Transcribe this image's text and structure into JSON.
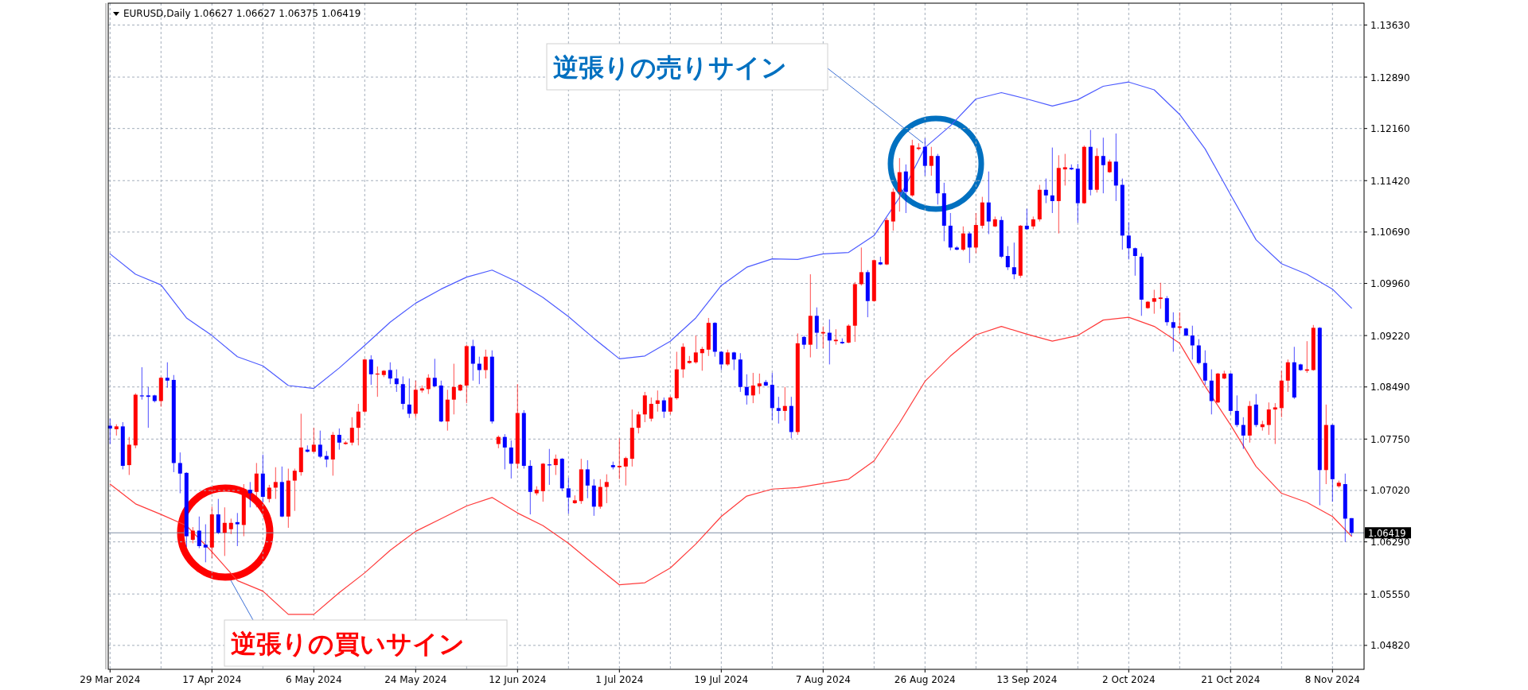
{
  "chart_data": {
    "type": "candlestick",
    "title": "EURUSD,Daily 1.06627 1.06627 1.06375 1.06419",
    "categories": [
      "29 Mar 2024",
      null,
      null,
      null,
      null,
      null,
      null,
      null,
      null,
      null,
      null,
      null,
      null,
      null,
      null,
      null,
      "17 Apr 2024",
      null,
      null,
      null,
      null,
      null,
      null,
      null,
      null,
      null,
      null,
      null,
      null,
      null,
      null,
      null,
      "6 May 2024",
      null,
      null,
      null,
      null,
      null,
      null,
      null,
      null,
      null,
      null,
      null,
      null,
      null,
      null,
      null,
      "24 May 2024",
      null,
      null,
      null,
      null,
      null,
      null,
      null,
      null,
      null,
      null,
      null,
      null,
      null,
      null,
      null,
      "12 Jun 2024",
      null,
      null,
      null,
      null,
      null,
      null,
      null,
      null,
      null,
      null,
      null,
      null,
      null,
      null,
      null,
      "1 Jul 2024",
      null,
      null,
      null,
      null,
      null,
      null,
      null,
      null,
      null,
      null,
      null,
      null,
      null,
      null,
      null,
      "19 Jul 2024",
      null,
      null,
      null,
      null,
      null,
      null,
      null,
      null,
      null,
      null,
      null,
      null,
      null,
      null,
      null,
      "7 Aug 2024",
      null,
      null,
      null,
      null,
      null,
      null,
      null,
      null,
      null,
      null,
      null,
      null,
      null,
      null,
      null,
      "26 Aug 2024",
      null,
      null,
      null,
      null,
      null,
      null,
      null,
      null,
      null,
      null,
      null,
      null,
      null,
      null,
      null,
      "13 Sep 2024",
      null,
      null,
      null,
      null,
      null,
      null,
      null,
      null,
      null,
      null,
      null,
      null,
      null,
      null,
      null,
      "2 Oct 2024",
      null,
      null,
      null,
      null,
      null,
      null,
      null,
      null,
      null,
      null,
      null,
      null,
      null,
      null,
      null,
      "21 Oct 2024",
      null,
      null,
      null,
      null,
      null,
      null,
      null,
      null,
      null,
      null,
      null,
      null,
      null,
      null,
      null,
      "8 Nov 2024",
      null,
      null,
      null
    ],
    "ohlc": [
      [
        1.0794,
        1.0804,
        1.0768,
        1.079
      ],
      [
        1.0789,
        1.0796,
        1.078,
        1.0793
      ],
      [
        1.0793,
        1.0799,
        1.0732,
        1.0737
      ],
      [
        1.0738,
        1.0778,
        1.0724,
        1.0767
      ],
      [
        1.0766,
        1.084,
        1.0762,
        1.0838
      ],
      [
        1.0837,
        1.0877,
        1.0831,
        1.0836
      ],
      [
        1.0837,
        1.0849,
        1.0791,
        1.0835
      ],
      [
        1.0837,
        1.0838,
        1.0827,
        1.0829
      ],
      [
        1.0829,
        1.0863,
        1.0821,
        1.0862
      ],
      [
        1.0862,
        1.0884,
        1.0848,
        1.0858
      ],
      [
        1.0859,
        1.0866,
        1.0728,
        1.0741
      ],
      [
        1.0741,
        1.0756,
        1.0698,
        1.0726
      ],
      [
        1.0727,
        1.0728,
        1.0622,
        1.0637
      ],
      [
        1.0632,
        1.065,
        1.0627,
        1.0645
      ],
      [
        1.0645,
        1.0665,
        1.062,
        1.0623
      ],
      [
        1.0625,
        1.0654,
        1.06,
        1.0621
      ],
      [
        1.0621,
        1.0679,
        1.0606,
        1.0668
      ],
      [
        1.0668,
        1.069,
        1.064,
        1.0642
      ],
      [
        1.0642,
        1.0678,
        1.0609,
        1.0656
      ],
      [
        1.0647,
        1.0662,
        1.064,
        1.0656
      ],
      [
        1.0657,
        1.067,
        1.0623,
        1.0654
      ],
      [
        1.0653,
        1.0711,
        1.0637,
        1.0703
      ],
      [
        1.0703,
        1.0714,
        1.0678,
        1.0698
      ],
      [
        1.07,
        1.0741,
        1.0678,
        1.0726
      ],
      [
        1.0726,
        1.0753,
        1.0685,
        1.0693
      ],
      [
        1.069,
        1.071,
        1.0685,
        1.0706
      ],
      [
        1.0706,
        1.0735,
        1.069,
        1.0714
      ],
      [
        1.0714,
        1.0736,
        1.0664,
        1.0665
      ],
      [
        1.0665,
        1.0733,
        1.0649,
        1.0716
      ],
      [
        1.0716,
        1.0733,
        1.0673,
        1.073
      ],
      [
        1.0728,
        1.0811,
        1.0723,
        1.0763
      ],
      [
        1.076,
        1.0766,
        1.0756,
        1.0757
      ],
      [
        1.0757,
        1.0791,
        1.0756,
        1.0767
      ],
      [
        1.0767,
        1.0787,
        1.0748,
        1.075
      ],
      [
        1.0751,
        1.0758,
        1.0735,
        1.0746
      ],
      [
        1.0746,
        1.0785,
        1.0723,
        1.0781
      ],
      [
        1.0781,
        1.079,
        1.076,
        1.077
      ],
      [
        1.0768,
        1.0772,
        1.0767,
        1.077
      ],
      [
        1.077,
        1.0806,
        1.0766,
        1.0791
      ],
      [
        1.0791,
        1.0825,
        1.0766,
        1.0814
      ],
      [
        1.0814,
        1.0889,
        1.0812,
        1.0888
      ],
      [
        1.0888,
        1.0894,
        1.0852,
        1.0867
      ],
      [
        1.0867,
        1.0878,
        1.0835,
        1.0868
      ],
      [
        1.0866,
        1.0873,
        1.0863,
        1.0872
      ],
      [
        1.0873,
        1.0884,
        1.0853,
        1.0861
      ],
      [
        1.0861,
        1.0874,
        1.0842,
        1.0853
      ],
      [
        1.0853,
        1.0864,
        1.0817,
        1.0825
      ],
      [
        1.0824,
        1.0861,
        1.0805,
        1.0811
      ],
      [
        1.0811,
        1.0858,
        1.0805,
        1.0845
      ],
      [
        1.0844,
        1.0851,
        1.0841,
        1.0847
      ],
      [
        1.0846,
        1.0867,
        1.0839,
        1.0862
      ],
      [
        1.0862,
        1.0889,
        1.0849,
        1.085
      ],
      [
        1.0851,
        1.0858,
        1.0799,
        1.08
      ],
      [
        1.08,
        1.0845,
        1.0787,
        1.0831
      ],
      [
        1.0831,
        1.0882,
        1.081,
        1.0849
      ],
      [
        1.0844,
        1.0853,
        1.0843,
        1.0852
      ],
      [
        1.0851,
        1.0909,
        1.0826,
        1.0907
      ],
      [
        1.0907,
        1.0916,
        1.0858,
        1.0882
      ],
      [
        1.0882,
        1.0892,
        1.0853,
        1.0873
      ],
      [
        1.0873,
        1.0902,
        1.0861,
        1.0892
      ],
      [
        1.0892,
        1.0901,
        1.0797,
        1.08
      ],
      [
        1.0768,
        1.078,
        1.0762,
        1.0778
      ],
      [
        1.0778,
        1.0782,
        1.0732,
        1.0763
      ],
      [
        1.0763,
        1.0773,
        1.0719,
        1.074
      ],
      [
        1.074,
        1.0853,
        1.0733,
        1.0812
      ],
      [
        1.0812,
        1.0816,
        1.0733,
        1.0737
      ],
      [
        1.0737,
        1.0745,
        1.0668,
        1.07
      ],
      [
        1.0698,
        1.0708,
        1.0695,
        1.0703
      ],
      [
        1.0701,
        1.0741,
        1.0686,
        1.074
      ],
      [
        1.0739,
        1.0761,
        1.071,
        1.0738
      ],
      [
        1.0738,
        1.0753,
        1.0724,
        1.0747
      ],
      [
        1.0747,
        1.0748,
        1.0701,
        1.0705
      ],
      [
        1.0705,
        1.072,
        1.0669,
        1.0692
      ],
      [
        1.0684,
        1.0695,
        1.0683,
        1.0688
      ],
      [
        1.0687,
        1.0747,
        1.0683,
        1.0732
      ],
      [
        1.0732,
        1.0745,
        1.0691,
        1.0709
      ],
      [
        1.0709,
        1.0718,
        1.0666,
        1.0679
      ],
      [
        1.0679,
        1.0718,
        1.0676,
        1.0707
      ],
      [
        1.0707,
        1.0725,
        1.0684,
        1.0714
      ],
      [
        1.0738,
        1.0743,
        1.0732,
        1.0735
      ],
      [
        1.0735,
        1.0776,
        1.0718,
        1.0737
      ],
      [
        1.0736,
        1.075,
        1.0709,
        1.0748
      ],
      [
        1.0747,
        1.0817,
        1.0736,
        1.0791
      ],
      [
        1.0791,
        1.0814,
        1.0783,
        1.081
      ],
      [
        1.081,
        1.0842,
        1.0799,
        1.0837
      ],
      [
        1.0804,
        1.0834,
        1.08,
        1.0825
      ],
      [
        1.0825,
        1.0844,
        1.0814,
        1.083
      ],
      [
        1.083,
        1.0834,
        1.0805,
        1.0814
      ],
      [
        1.0814,
        1.0836,
        1.081,
        1.0834
      ],
      [
        1.0833,
        1.0899,
        1.0831,
        1.0874
      ],
      [
        1.0874,
        1.0911,
        1.0862,
        1.0906
      ],
      [
        1.0883,
        1.0893,
        1.0882,
        1.0886
      ],
      [
        1.0884,
        1.0922,
        1.0882,
        1.0898
      ],
      [
        1.0897,
        1.0906,
        1.0872,
        1.0903
      ],
      [
        1.0902,
        1.0947,
        1.0893,
        1.094
      ],
      [
        1.094,
        1.0941,
        1.0892,
        1.0899
      ],
      [
        1.0899,
        1.09,
        1.0873,
        1.0881
      ],
      [
        1.0881,
        1.0902,
        1.0879,
        1.0898
      ],
      [
        1.0898,
        1.0899,
        1.0873,
        1.0888
      ],
      [
        1.0888,
        1.0897,
        1.0842,
        1.0849
      ],
      [
        1.0849,
        1.0867,
        1.0824,
        1.0837
      ],
      [
        1.0837,
        1.0869,
        1.0826,
        1.0851
      ],
      [
        1.085,
        1.0868,
        1.0839,
        1.0854
      ],
      [
        1.0856,
        1.0859,
        1.085,
        1.0851
      ],
      [
        1.0852,
        1.0869,
        1.0802,
        1.0819
      ],
      [
        1.0819,
        1.0835,
        1.0797,
        1.0815
      ],
      [
        1.0815,
        1.0849,
        1.0801,
        1.0822
      ],
      [
        1.0822,
        1.0835,
        1.0776,
        1.0785
      ],
      [
        1.0785,
        1.0925,
        1.0781,
        1.0911
      ],
      [
        1.092,
        1.0922,
        1.0903,
        1.0909
      ],
      [
        1.0909,
        1.1009,
        1.0891,
        1.095
      ],
      [
        1.095,
        1.0962,
        1.0903,
        1.0926
      ],
      [
        1.0925,
        1.0935,
        1.0904,
        1.0927
      ],
      [
        1.0926,
        1.0945,
        1.0881,
        1.0915
      ],
      [
        1.0914,
        1.0931,
        1.0909,
        1.0916
      ],
      [
        1.0913,
        1.0918,
        1.091,
        1.0911
      ],
      [
        1.0912,
        1.0938,
        1.0911,
        1.0936
      ],
      [
        1.0936,
        1.0998,
        1.0913,
        1.0995
      ],
      [
        1.0995,
        1.1047,
        1.0993,
        1.1012
      ],
      [
        1.1012,
        1.1015,
        1.0948,
        1.0971
      ],
      [
        1.0971,
        1.103,
        1.097,
        1.1029
      ],
      [
        1.1026,
        1.1034,
        1.1022,
        1.1023
      ],
      [
        1.1023,
        1.1089,
        1.1022,
        1.1086
      ],
      [
        1.1084,
        1.1131,
        1.1071,
        1.1126
      ],
      [
        1.1126,
        1.1174,
        1.1098,
        1.1154
      ],
      [
        1.1155,
        1.1165,
        1.1096,
        1.1126
      ],
      [
        1.1121,
        1.12,
        1.1119,
        1.1192
      ],
      [
        1.1187,
        1.1195,
        1.1185,
        1.1189
      ],
      [
        1.119,
        1.1202,
        1.1149,
        1.1163
      ],
      [
        1.1163,
        1.119,
        1.1149,
        1.1177
      ],
      [
        1.1177,
        1.118,
        1.1108,
        1.1124
      ],
      [
        1.1124,
        1.1139,
        1.1056,
        1.1078
      ],
      [
        1.1078,
        1.1096,
        1.1043,
        1.1047
      ],
      [
        1.1047,
        1.1049,
        1.1043,
        1.1044
      ],
      [
        1.1044,
        1.1077,
        1.1042,
        1.1067
      ],
      [
        1.1067,
        1.1069,
        1.1025,
        1.1047
      ],
      [
        1.1047,
        1.1096,
        1.1039,
        1.1079
      ],
      [
        1.1078,
        1.1119,
        1.1074,
        1.1111
      ],
      [
        1.1111,
        1.1155,
        1.1066,
        1.1084
      ],
      [
        1.1077,
        1.1091,
        1.1076,
        1.1087
      ],
      [
        1.1086,
        1.1091,
        1.1032,
        1.1034
      ],
      [
        1.1035,
        1.1049,
        1.1015,
        1.1019
      ],
      [
        1.1019,
        1.1054,
        1.1002,
        1.1009
      ],
      [
        1.1007,
        1.1079,
        1.1004,
        1.1078
      ],
      [
        1.1078,
        1.1102,
        1.1072,
        1.1073
      ],
      [
        1.1077,
        1.1091,
        1.1073,
        1.1087
      ],
      [
        1.1087,
        1.1136,
        1.1084,
        1.1129
      ],
      [
        1.1129,
        1.1145,
        1.111,
        1.1121
      ],
      [
        1.1121,
        1.1189,
        1.1096,
        1.1113
      ],
      [
        1.1113,
        1.1178,
        1.1067,
        1.116
      ],
      [
        1.1158,
        1.118,
        1.1135,
        1.1161
      ],
      [
        1.116,
        1.1165,
        1.1157,
        1.1158
      ],
      [
        1.1159,
        1.1166,
        1.1082,
        1.111
      ],
      [
        1.111,
        1.1192,
        1.1109,
        1.119
      ],
      [
        1.119,
        1.1214,
        1.1121,
        1.1129
      ],
      [
        1.1129,
        1.1188,
        1.1125,
        1.1177
      ],
      [
        1.1177,
        1.1203,
        1.1124,
        1.1164
      ],
      [
        1.1154,
        1.1172,
        1.1153,
        1.1169
      ],
      [
        1.1169,
        1.1209,
        1.1113,
        1.1135
      ],
      [
        1.1136,
        1.1145,
        1.1044,
        1.1064
      ],
      [
        1.1064,
        1.1083,
        1.103,
        1.1046
      ],
      [
        1.1046,
        1.1047,
        1.1007,
        1.1035
      ],
      [
        1.1034,
        1.1039,
        1.095,
        1.0973
      ],
      [
        1.0961,
        1.0971,
        1.096,
        1.097
      ],
      [
        1.097,
        1.0987,
        1.0953,
        1.0975
      ],
      [
        1.0974,
        1.0997,
        1.096,
        1.0976
      ],
      [
        1.0975,
        1.0978,
        1.0936,
        1.0941
      ],
      [
        1.0941,
        1.0955,
        1.0899,
        1.0933
      ],
      [
        1.0933,
        1.0955,
        1.0925,
        1.0935
      ],
      [
        1.0932,
        1.0933,
        1.0921,
        1.0922
      ],
      [
        1.0922,
        1.0936,
        1.0888,
        1.0908
      ],
      [
        1.0908,
        1.0917,
        1.0881,
        1.0883
      ],
      [
        1.0883,
        1.0901,
        1.0852,
        1.0858
      ],
      [
        1.0858,
        1.0874,
        1.081,
        1.0829
      ],
      [
        1.0827,
        1.0869,
        1.0826,
        1.0868
      ],
      [
        1.0861,
        1.0872,
        1.086,
        1.0868
      ],
      [
        1.0868,
        1.0869,
        1.081,
        1.0815
      ],
      [
        1.0815,
        1.0837,
        1.0792,
        1.0795
      ],
      [
        1.0795,
        1.0806,
        1.0761,
        1.078
      ],
      [
        1.078,
        1.0829,
        1.077,
        1.0822
      ],
      [
        1.0824,
        1.0839,
        1.0792,
        1.0795
      ],
      [
        1.0792,
        1.0801,
        1.0787,
        1.0796
      ],
      [
        1.0795,
        1.0827,
        1.0781,
        1.0817
      ],
      [
        1.0817,
        1.0826,
        1.0768,
        1.082
      ],
      [
        1.0819,
        1.0872,
        1.0806,
        1.0858
      ],
      [
        1.0858,
        1.0888,
        1.0842,
        1.0884
      ],
      [
        1.0884,
        1.0906,
        1.0832,
        1.0834
      ],
      [
        1.0881,
        1.0882,
        1.0872,
        1.0873
      ],
      [
        1.0872,
        1.0914,
        1.0869,
        1.0874
      ],
      [
        1.0873,
        1.0937,
        1.0872,
        1.0933
      ],
      [
        1.0933,
        1.0934,
        1.0681,
        1.0731
      ],
      [
        1.0731,
        1.0824,
        1.0711,
        1.0795
      ],
      [
        1.0795,
        1.0796,
        1.0686,
        1.0718
      ],
      [
        1.0708,
        1.0716,
        1.0706,
        1.0713
      ],
      [
        1.0711,
        1.0726,
        1.0629,
        1.0662
      ],
      [
        1.06627,
        1.06627,
        1.06375,
        1.06419
      ]
    ],
    "series": [
      {
        "type": "line",
        "color": "#4d5bff",
        "values": [
          1.1038,
          null,
          null,
          null,
          1.1009,
          null,
          null,
          null,
          1.0994,
          null,
          null,
          null,
          1.0947,
          null,
          null,
          null,
          1.0922,
          null,
          null,
          null,
          1.0892,
          null,
          null,
          null,
          1.0879,
          null,
          null,
          null,
          1.0851,
          null,
          null,
          null,
          1.0847,
          null,
          null,
          null,
          1.0876,
          null,
          null,
          null,
          1.0908,
          null,
          null,
          null,
          1.0941,
          null,
          null,
          null,
          1.0968,
          null,
          null,
          null,
          1.0988,
          null,
          null,
          null,
          1.1005,
          null,
          null,
          null,
          1.1015,
          null,
          null,
          null,
          1.0998,
          null,
          null,
          null,
          1.0976,
          null,
          null,
          null,
          1.0949,
          null,
          null,
          null,
          1.0918,
          null,
          null,
          null,
          1.0889,
          null,
          null,
          null,
          1.0893,
          null,
          null,
          null,
          1.0914,
          null,
          null,
          null,
          1.0947,
          null,
          null,
          null,
          1.0993,
          null,
          null,
          null,
          1.1019,
          null,
          null,
          null,
          1.1031,
          null,
          null,
          null,
          1.103,
          null,
          null,
          null,
          1.1038,
          null,
          null,
          null,
          1.104,
          null,
          null,
          null,
          1.1064,
          null,
          null,
          null,
          1.1118,
          null,
          null,
          null,
          1.1189,
          null,
          null,
          null,
          1.122,
          null,
          null,
          null,
          1.1258,
          null,
          null,
          null,
          1.1267,
          null,
          null,
          null,
          1.1258,
          null,
          null,
          null,
          1.1248,
          null,
          null,
          null,
          1.1257,
          null,
          null,
          null,
          1.1276,
          null,
          null,
          null,
          1.1282,
          null,
          null,
          null,
          1.1271,
          null,
          null,
          null,
          1.1236,
          null,
          null,
          null,
          1.1187,
          null,
          null,
          null,
          1.1122,
          null,
          null,
          null,
          1.1058,
          null,
          null,
          null,
          1.1024,
          null,
          null,
          null,
          1.1009,
          null,
          null,
          null,
          1.0988,
          null,
          null,
          1.0961
        ]
      },
      {
        "type": "line",
        "color": "#ff3b3b",
        "values": [
          1.0711,
          null,
          null,
          null,
          1.0683,
          null,
          null,
          null,
          1.0668,
          null,
          null,
          null,
          1.0652,
          null,
          null,
          null,
          1.0615,
          null,
          null,
          null,
          1.0574,
          null,
          null,
          null,
          1.0559,
          null,
          null,
          null,
          1.0526,
          null,
          null,
          null,
          1.0526,
          null,
          null,
          null,
          1.0557,
          null,
          null,
          null,
          1.0585,
          null,
          null,
          null,
          1.0617,
          null,
          null,
          null,
          1.0644,
          null,
          null,
          null,
          1.0662,
          null,
          null,
          null,
          1.068,
          null,
          null,
          null,
          1.0692,
          null,
          null,
          null,
          1.067,
          null,
          null,
          null,
          1.0652,
          null,
          null,
          null,
          1.0627,
          null,
          null,
          null,
          1.0597,
          null,
          null,
          null,
          1.0568,
          null,
          null,
          null,
          1.0571,
          null,
          null,
          null,
          1.0592,
          null,
          null,
          null,
          1.0626,
          null,
          null,
          null,
          1.0665,
          null,
          null,
          null,
          1.0694,
          null,
          null,
          null,
          1.0704,
          null,
          null,
          null,
          1.0706,
          null,
          null,
          null,
          1.0712,
          null,
          null,
          null,
          1.0718,
          null,
          null,
          null,
          1.0744,
          null,
          null,
          null,
          1.0798,
          null,
          null,
          null,
          1.0857,
          null,
          null,
          null,
          1.0893,
          null,
          null,
          null,
          1.0923,
          null,
          null,
          null,
          1.0935,
          null,
          null,
          null,
          1.0924,
          null,
          null,
          null,
          1.0914,
          null,
          null,
          null,
          1.0922,
          null,
          null,
          null,
          1.0944,
          null,
          null,
          null,
          1.0948,
          null,
          null,
          null,
          1.0935,
          null,
          null,
          null,
          1.0911,
          null,
          null,
          null,
          1.085,
          null,
          null,
          null,
          1.0795,
          null,
          null,
          null,
          1.0736,
          null,
          null,
          null,
          1.0698,
          null,
          null,
          null,
          1.0685,
          null,
          null,
          null,
          1.0665,
          null,
          null,
          1.0637
        ]
      }
    ],
    "ylim": [
      1.0448,
      1.1394
    ],
    "yticks": [
      {
        "value": 1.0482,
        "label": "1.04820"
      },
      {
        "value": 1.0555,
        "label": "1.05550"
      },
      {
        "value": 1.0629,
        "label": "1.06290"
      },
      {
        "value": 1.0702,
        "label": "1.07020"
      },
      {
        "value": 1.0775,
        "label": "1.07750"
      },
      {
        "value": 1.0849,
        "label": "1.08490"
      },
      {
        "value": 1.0922,
        "label": "1.09220"
      },
      {
        "value": 1.0996,
        "label": "1.09960"
      },
      {
        "value": 1.1069,
        "label": "1.10690"
      },
      {
        "value": 1.1142,
        "label": "1.11420"
      },
      {
        "value": 1.1216,
        "label": "1.12160"
      },
      {
        "value": 1.1289,
        "label": "1.12890"
      },
      {
        "value": 1.1363,
        "label": "1.13630"
      }
    ],
    "grid": true,
    "ref_lines": [
      {
        "axis": "y",
        "value": 1.06419,
        "label": "1.06419",
        "color": "#7f8ea3"
      }
    ],
    "annotations": [
      "逆張りの売りサイン",
      "逆張りの買いサイン"
    ]
  }
}
